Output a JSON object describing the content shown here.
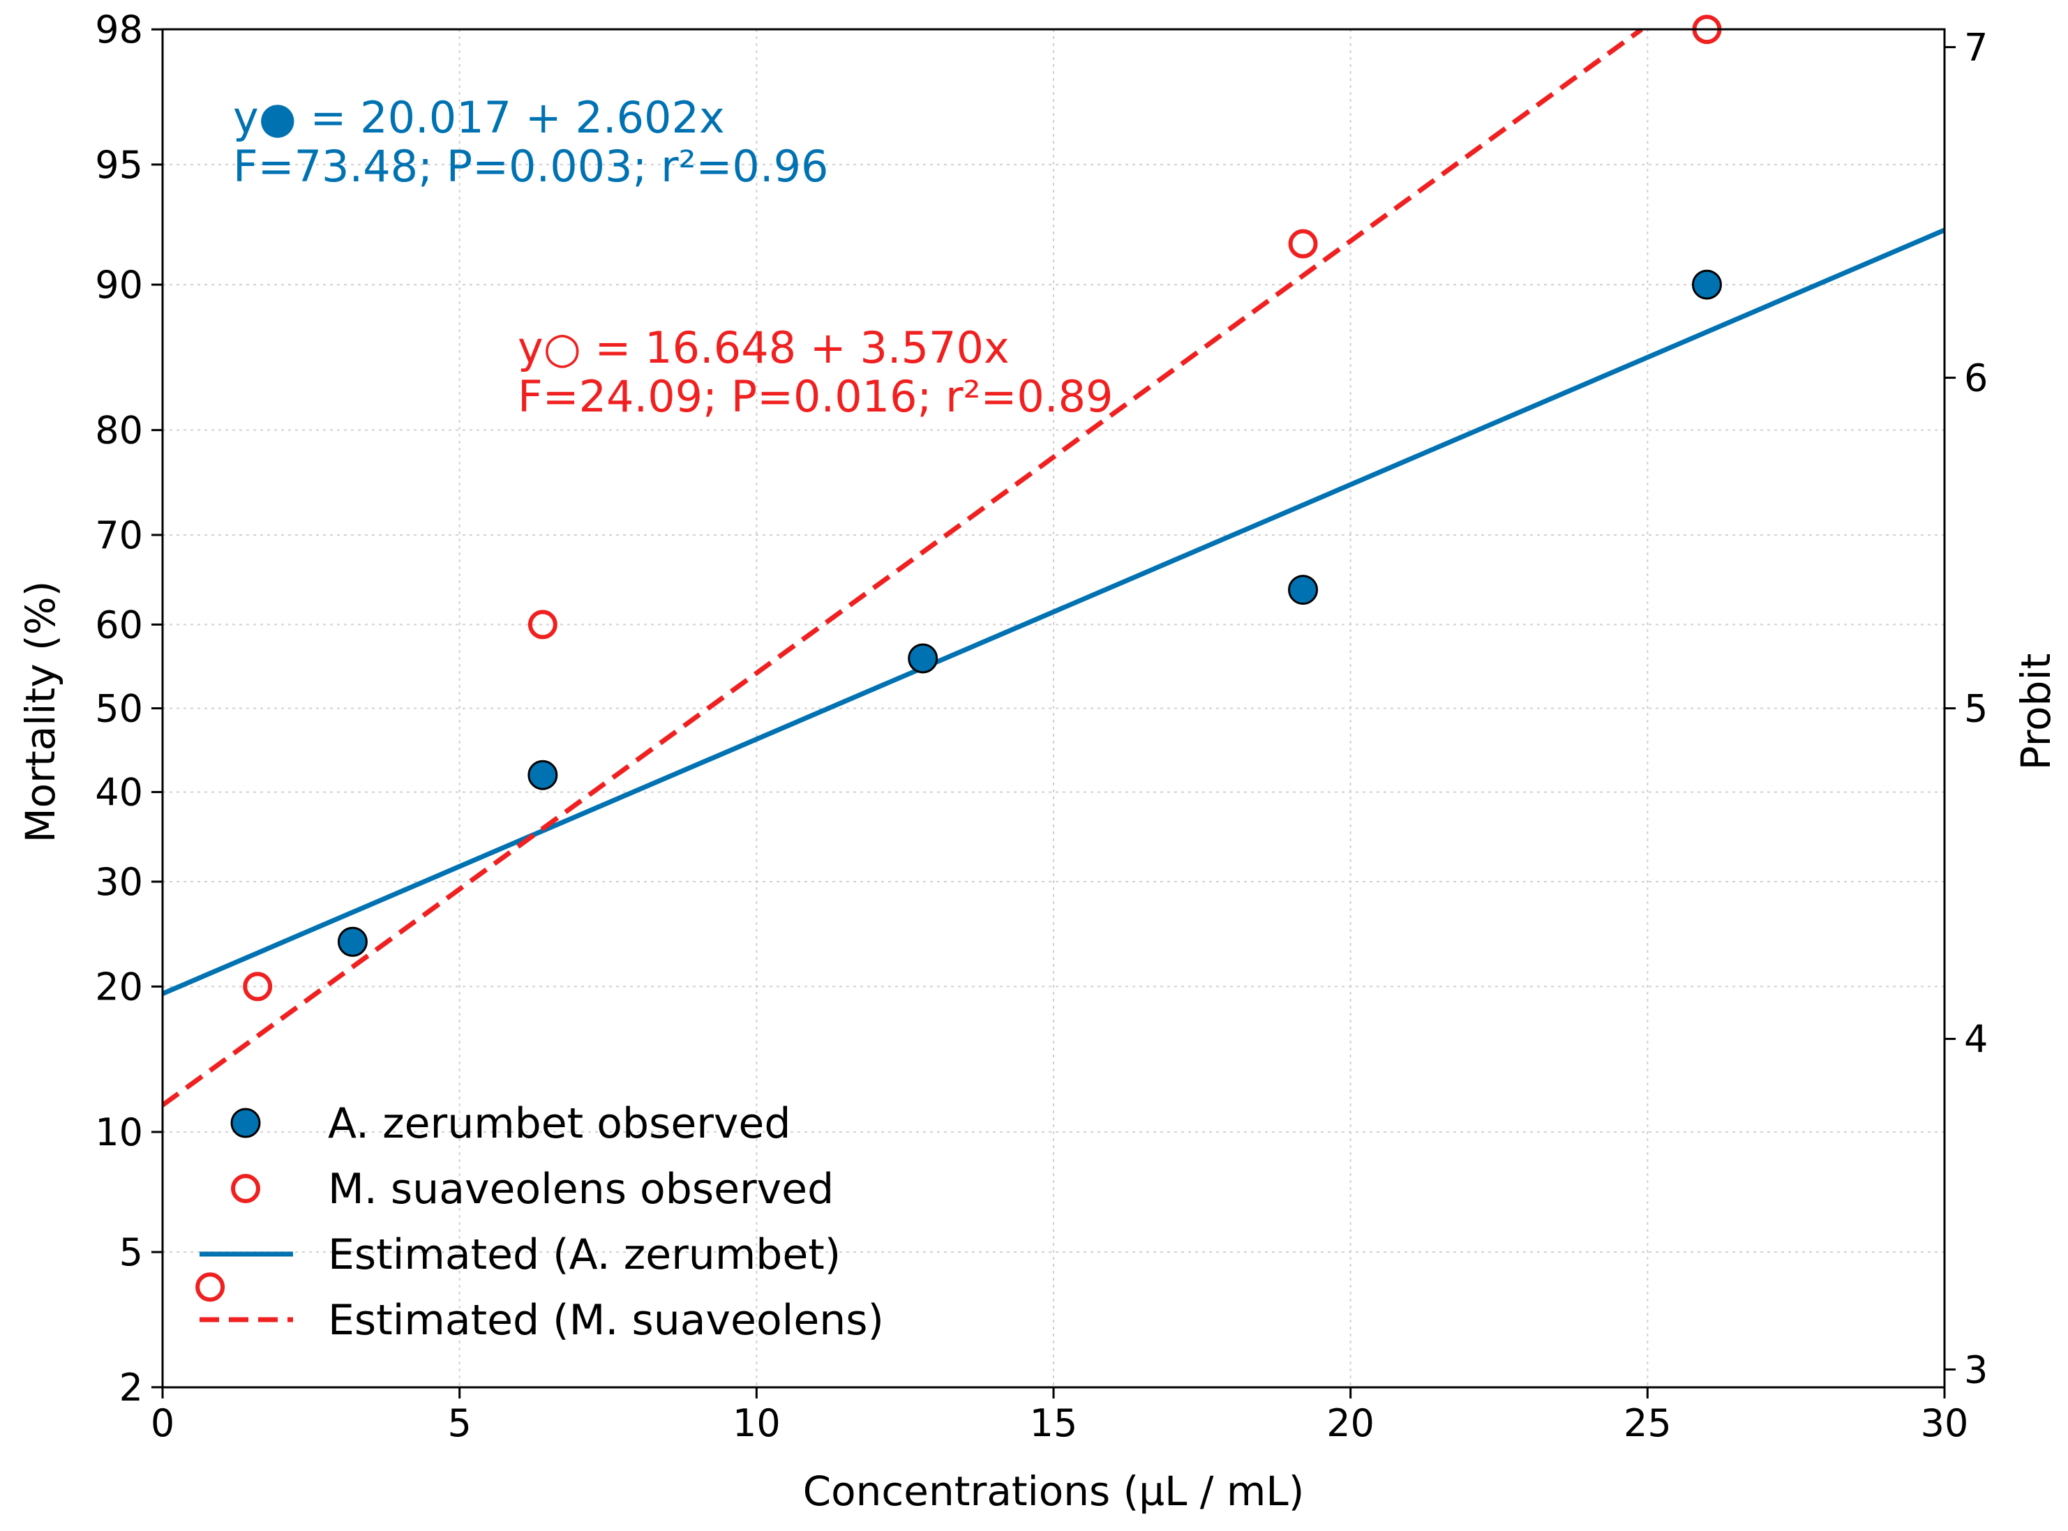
{
  "chart_data": {
    "type": "scatter",
    "xlabel": "Concentrations (µL / mL)",
    "ylabel": "Mortality (%)",
    "ylabel_right": "Probit",
    "xlim": [
      0,
      30
    ],
    "probit_lim": [
      2.946,
      7.054
    ],
    "x_ticks": [
      0,
      5,
      10,
      15,
      20,
      25,
      30
    ],
    "y_ticks": [
      2,
      5,
      10,
      20,
      30,
      40,
      50,
      60,
      70,
      80,
      90,
      95,
      98
    ],
    "probit_ticks": [
      3,
      4,
      5,
      6,
      7
    ],
    "grid": true,
    "series": [
      {
        "name": "A. zerumbet observed",
        "kind": "points",
        "style": "filled",
        "x": [
          3.2,
          6.4,
          12.8,
          19.2,
          26.0
        ],
        "y_percent": [
          24,
          42,
          56,
          64,
          90
        ]
      },
      {
        "name": "M. suaveolens observed",
        "kind": "points",
        "style": "open",
        "x": [
          0.8,
          1.6,
          6.4,
          19.2,
          26.0
        ],
        "y_percent": [
          4,
          20,
          60,
          92,
          98
        ]
      },
      {
        "name": "Estimated (A. zerumbet)",
        "kind": "line",
        "style": "solid",
        "x": [
          0,
          30
        ],
        "y_percent": [
          19.4,
          92.6
        ]
      },
      {
        "name": "Estimated (M. suaveolens)",
        "kind": "line",
        "style": "dashed",
        "x": [
          0,
          24.9
        ],
        "y_percent": [
          11.5,
          98
        ]
      }
    ],
    "annotations": [
      {
        "line1": "y● = 20.017 + 2.602x",
        "line2": "F=73.48; P=0.003; r²=0.96",
        "color": "#0072b2"
      },
      {
        "line1": "y○ = 16.648 + 3.570x",
        "line2": "F=24.09; P=0.016; r²=0.89",
        "color": "#f02020"
      }
    ],
    "legend": [
      "A. zerumbet observed",
      "M. suaveolens observed",
      "Estimated (A. zerumbet)",
      "Estimated (M. suaveolens)"
    ],
    "legend_position": "lower-left",
    "colors": {
      "blue": "#0072b2",
      "red": "#f02020"
    }
  }
}
